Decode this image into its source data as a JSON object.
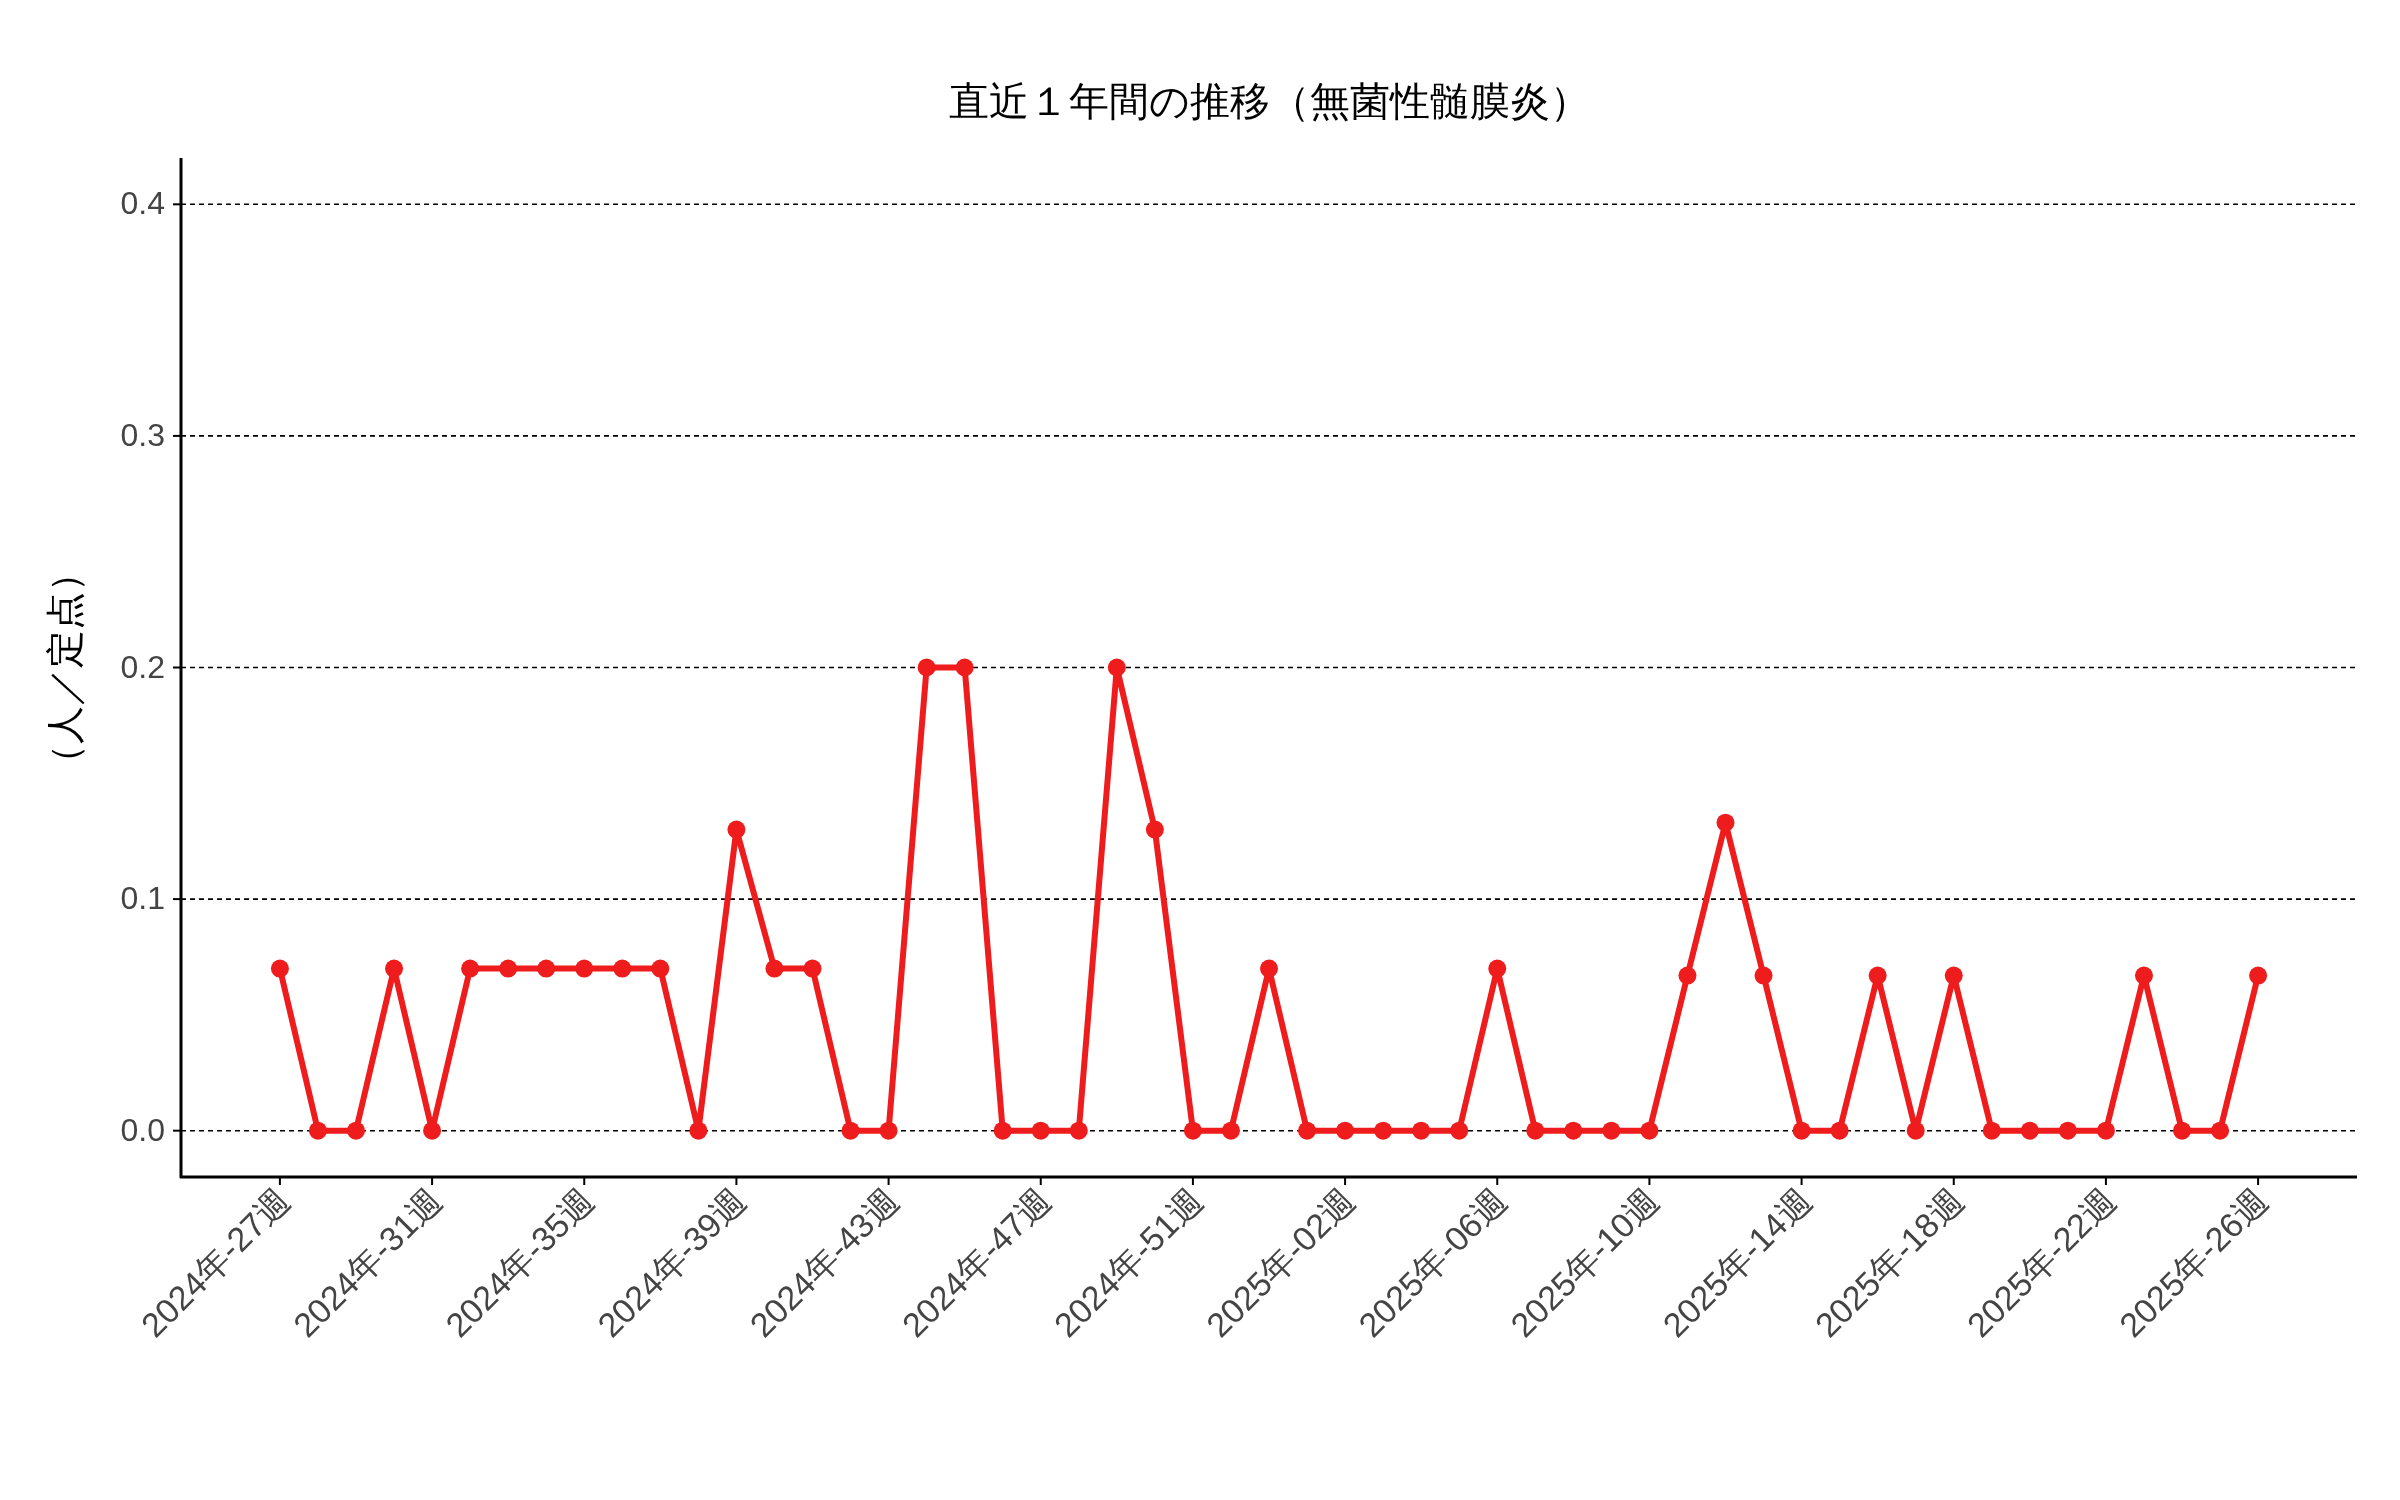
{
  "chart_data": {
    "type": "line",
    "title": "直近１年間の推移（無菌性髄膜炎）",
    "ylabel": "（人／定点）",
    "categories": [
      "2024年-27週",
      null,
      null,
      null,
      "2024年-31週",
      null,
      null,
      null,
      "2024年-35週",
      null,
      null,
      null,
      "2024年-39週",
      null,
      null,
      null,
      "2024年-43週",
      null,
      null,
      null,
      "2024年-47週",
      null,
      null,
      null,
      "2024年-51週",
      null,
      null,
      null,
      "2025年-02週",
      null,
      null,
      null,
      "2025年-06週",
      null,
      null,
      null,
      "2025年-10週",
      null,
      null,
      null,
      "2025年-14週",
      null,
      null,
      null,
      "2025年-18週",
      null,
      null,
      null,
      "2025年-22週",
      null,
      null,
      null,
      "2025年-26週"
    ],
    "series": [
      {
        "color": "#ee1c1c",
        "values": [
          0.07,
          0,
          0,
          0.07,
          0,
          0.07,
          0.07,
          0.07,
          0.07,
          0.07,
          0.07,
          0,
          0.13,
          0.07,
          0.07,
          0,
          0,
          0.2,
          0.2,
          0,
          0,
          0,
          0.2,
          0.13,
          0,
          0,
          0.07,
          0,
          0,
          0,
          0,
          0,
          0.07,
          0,
          0,
          0,
          0,
          0.067,
          0.133,
          0.067,
          0,
          0,
          0.067,
          0,
          0.067,
          0,
          0,
          0,
          0,
          0.067,
          0,
          0,
          0.067
        ]
      }
    ],
    "ylim": [
      -0.02,
      0.42
    ],
    "yticks": [
      {
        "value": 0,
        "label": "0.0"
      },
      0.1,
      0.2,
      0.3,
      0.4
    ],
    "grid": "y",
    "marker": "circle",
    "line_style": "solid"
  }
}
